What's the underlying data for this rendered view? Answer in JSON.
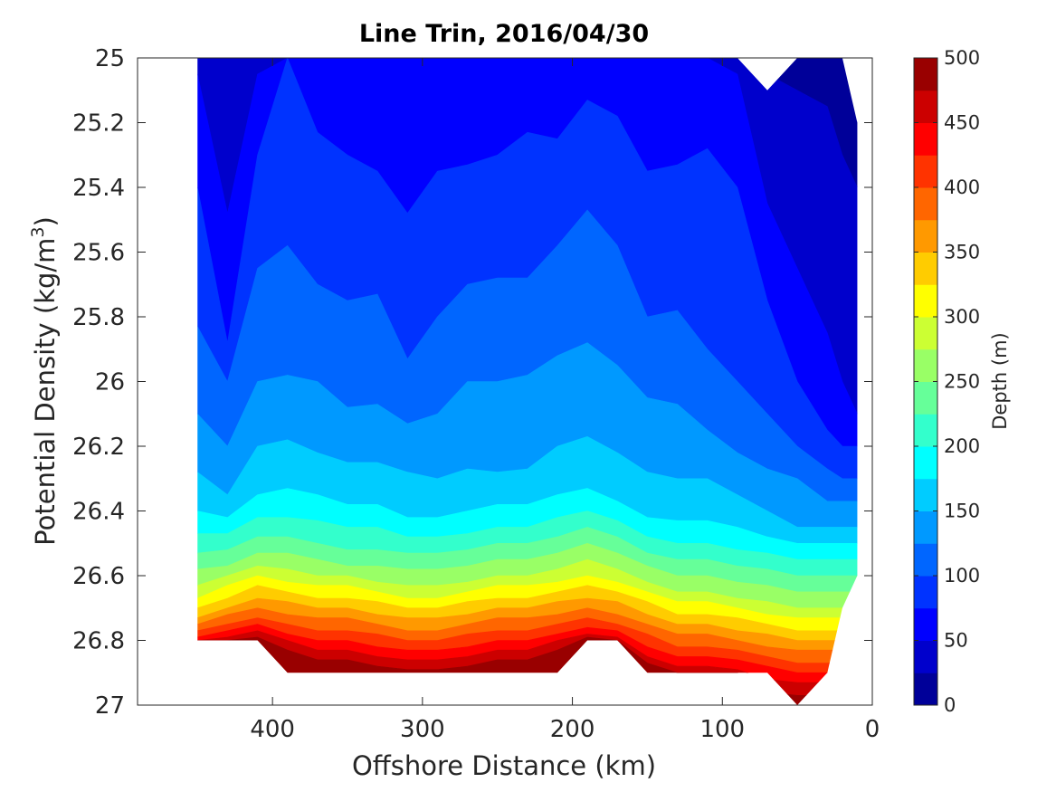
{
  "chart_data": {
    "type": "contour",
    "title": "Line Trin, 2016/04/30",
    "xlabel": "Offshore Distance (km)",
    "ylabel_main": "Potential Density (kg/m",
    "ylabel_sup": "3",
    "ylabel_end": ")",
    "colorbar_label": "Depth (m)",
    "x_reversed": true,
    "xlim": [
      0,
      490
    ],
    "ylim": [
      25,
      27
    ],
    "y_reversed": true,
    "xticks": [
      400,
      300,
      200,
      100,
      0
    ],
    "xtick_labels": [
      "400",
      "300",
      "200",
      "100",
      "0"
    ],
    "yticks": [
      25,
      25.2,
      25.4,
      25.6,
      25.8,
      26,
      26.2,
      26.4,
      26.6,
      26.8,
      27
    ],
    "ytick_labels": [
      "25",
      "25.2",
      "25.4",
      "25.6",
      "25.8",
      "26",
      "26.2",
      "26.4",
      "26.6",
      "26.8",
      "27"
    ],
    "clim": [
      0,
      500
    ],
    "level_step": 25,
    "colorbar_ticks": [
      0,
      50,
      100,
      150,
      200,
      250,
      300,
      350,
      400,
      450,
      500
    ],
    "colorbar_tick_labels": [
      "0",
      "50",
      "100",
      "150",
      "200",
      "250",
      "300",
      "350",
      "400",
      "450",
      "500"
    ],
    "colormap": "jet",
    "grid": false,
    "stations_km": [
      450,
      430,
      410,
      390,
      370,
      350,
      330,
      310,
      290,
      270,
      250,
      230,
      210,
      190,
      170,
      150,
      130,
      110,
      90,
      70,
      50,
      30,
      20,
      10
    ],
    "contour_levels": [
      25,
      50,
      75,
      100,
      125,
      150,
      175,
      200,
      225,
      250,
      275,
      300,
      325,
      350,
      375,
      400,
      425,
      450,
      475
    ],
    "isopycnal_depths": [
      [
        null,
        null,
        null,
        25.0,
        25.0,
        25.0,
        25.0,
        25.0,
        25.0,
        25.0,
        25.0,
        25.0,
        25.0,
        25.0,
        25.0,
        25.0,
        25.0,
        25.0,
        25.0,
        25.05,
        25.1,
        25.15,
        25.3,
        25.4
      ],
      [
        25.05,
        25.48,
        25.05,
        25.0,
        25.0,
        25.0,
        25.0,
        25.0,
        25.0,
        25.0,
        25.0,
        25.0,
        25.0,
        25.0,
        25.0,
        25.0,
        25.0,
        25.0,
        25.05,
        25.45,
        25.65,
        25.85,
        26.0,
        26.1
      ],
      [
        25.4,
        25.88,
        25.3,
        25.0,
        25.23,
        25.3,
        25.35,
        25.48,
        25.35,
        25.33,
        25.3,
        25.23,
        25.25,
        25.13,
        25.18,
        25.35,
        25.33,
        25.28,
        25.4,
        25.75,
        26.0,
        26.15,
        26.2,
        26.2
      ],
      [
        25.83,
        26.0,
        25.65,
        25.58,
        25.7,
        25.75,
        25.73,
        25.93,
        25.8,
        25.7,
        25.68,
        25.68,
        25.58,
        25.47,
        25.58,
        25.8,
        25.78,
        25.9,
        26.0,
        26.1,
        26.2,
        26.27,
        26.3,
        26.3
      ],
      [
        26.1,
        26.2,
        26.0,
        25.98,
        26.0,
        26.08,
        26.07,
        26.13,
        26.1,
        26.0,
        26.0,
        25.98,
        25.92,
        25.88,
        25.95,
        26.05,
        26.07,
        26.15,
        26.22,
        26.27,
        26.3,
        26.37,
        26.37,
        26.37
      ],
      [
        26.28,
        26.35,
        26.2,
        26.18,
        26.22,
        26.25,
        26.25,
        26.28,
        26.3,
        26.27,
        26.28,
        26.27,
        26.2,
        26.17,
        26.22,
        26.28,
        26.3,
        26.3,
        26.35,
        26.4,
        26.45,
        26.45,
        26.45,
        26.45
      ],
      [
        26.4,
        26.42,
        26.35,
        26.33,
        26.35,
        26.38,
        26.38,
        26.42,
        26.42,
        26.4,
        26.38,
        26.38,
        26.35,
        26.33,
        26.37,
        26.42,
        26.43,
        26.43,
        26.45,
        26.48,
        26.5,
        26.5,
        26.5,
        26.5
      ],
      [
        26.47,
        26.47,
        26.42,
        26.42,
        26.43,
        26.45,
        26.45,
        26.48,
        26.48,
        26.47,
        26.45,
        26.45,
        26.42,
        26.4,
        26.43,
        26.48,
        26.5,
        26.5,
        26.52,
        26.53,
        26.55,
        26.55,
        26.55,
        26.55
      ],
      [
        26.53,
        26.52,
        26.48,
        26.48,
        26.5,
        26.52,
        26.52,
        26.53,
        26.53,
        26.52,
        26.5,
        26.5,
        26.48,
        26.45,
        26.48,
        26.53,
        26.55,
        26.55,
        26.57,
        26.58,
        26.6,
        26.6,
        26.6,
        26.6
      ],
      [
        26.58,
        26.57,
        26.53,
        26.53,
        26.55,
        26.57,
        26.57,
        26.58,
        26.58,
        26.57,
        26.55,
        26.55,
        26.53,
        26.5,
        26.53,
        26.57,
        26.6,
        26.6,
        26.62,
        26.63,
        26.65,
        26.65,
        26.65,
        26.65
      ],
      [
        26.63,
        26.6,
        26.57,
        26.58,
        26.6,
        26.6,
        26.62,
        26.63,
        26.63,
        26.62,
        26.6,
        26.6,
        26.58,
        26.55,
        26.58,
        26.62,
        26.65,
        26.65,
        26.67,
        26.68,
        26.7,
        26.7,
        26.7,
        26.7
      ],
      [
        26.67,
        26.63,
        26.6,
        26.62,
        26.63,
        26.63,
        26.65,
        26.67,
        26.67,
        26.65,
        26.63,
        26.63,
        26.62,
        26.6,
        26.62,
        26.65,
        26.68,
        26.68,
        26.7,
        26.72,
        26.73,
        26.73,
        26.73,
        26.73
      ],
      [
        26.7,
        26.67,
        26.63,
        26.65,
        26.67,
        26.67,
        26.68,
        26.7,
        26.7,
        26.68,
        26.67,
        26.67,
        26.65,
        26.63,
        26.65,
        26.68,
        26.72,
        26.72,
        26.73,
        26.75,
        26.77,
        26.77,
        26.77,
        26.77
      ],
      [
        26.73,
        26.7,
        26.67,
        26.68,
        26.7,
        26.7,
        26.72,
        26.73,
        26.73,
        26.72,
        26.7,
        26.7,
        26.68,
        26.67,
        26.68,
        26.72,
        26.75,
        26.75,
        26.77,
        26.78,
        26.8,
        26.8,
        26.8,
        26.8
      ],
      [
        26.75,
        26.72,
        26.7,
        26.72,
        26.73,
        26.73,
        26.75,
        26.77,
        26.77,
        26.75,
        26.73,
        26.73,
        26.72,
        26.7,
        26.72,
        26.75,
        26.78,
        26.78,
        26.8,
        26.82,
        26.83,
        26.83,
        26.83,
        26.83
      ],
      [
        26.77,
        26.75,
        26.73,
        26.75,
        26.77,
        26.77,
        26.78,
        26.8,
        26.8,
        26.78,
        26.77,
        26.77,
        26.75,
        26.73,
        26.75,
        26.78,
        26.82,
        26.82,
        26.83,
        26.85,
        26.87,
        26.87,
        26.87,
        26.87
      ],
      [
        26.79,
        26.77,
        26.75,
        26.78,
        26.8,
        26.8,
        26.82,
        26.83,
        26.83,
        26.82,
        26.8,
        26.8,
        26.78,
        26.76,
        26.77,
        26.82,
        26.85,
        26.85,
        26.86,
        26.88,
        26.9,
        26.9,
        26.9,
        26.9
      ],
      [
        26.8,
        26.79,
        26.77,
        26.8,
        26.83,
        26.83,
        26.85,
        26.86,
        26.86,
        26.85,
        26.83,
        26.83,
        26.8,
        26.78,
        26.79,
        26.85,
        26.88,
        26.88,
        26.89,
        26.92,
        26.93,
        26.93,
        26.93,
        26.93
      ],
      [
        26.8,
        26.8,
        26.79,
        26.83,
        26.86,
        26.86,
        26.88,
        26.89,
        26.89,
        26.88,
        26.86,
        26.86,
        26.83,
        26.79,
        26.8,
        26.87,
        26.9,
        26.9,
        26.9,
        26.96,
        26.97,
        26.97,
        26.97,
        26.97
      ]
    ],
    "surface_density": [
      25.0,
      25.0,
      25.0,
      25.0,
      25.0,
      25.0,
      25.0,
      25.0,
      25.0,
      25.0,
      25.0,
      25.0,
      25.0,
      25.0,
      25.0,
      25.0,
      25.0,
      25.0,
      25.0,
      25.1,
      25.0,
      25.0,
      25.0,
      25.2
    ],
    "bottom_density": [
      26.8,
      26.8,
      26.8,
      26.9,
      26.9,
      26.9,
      26.9,
      26.9,
      26.9,
      26.9,
      26.9,
      26.9,
      26.9,
      26.8,
      26.8,
      26.9,
      26.9,
      26.9,
      26.9,
      26.9,
      27.0,
      26.9,
      26.7,
      26.6
    ]
  }
}
